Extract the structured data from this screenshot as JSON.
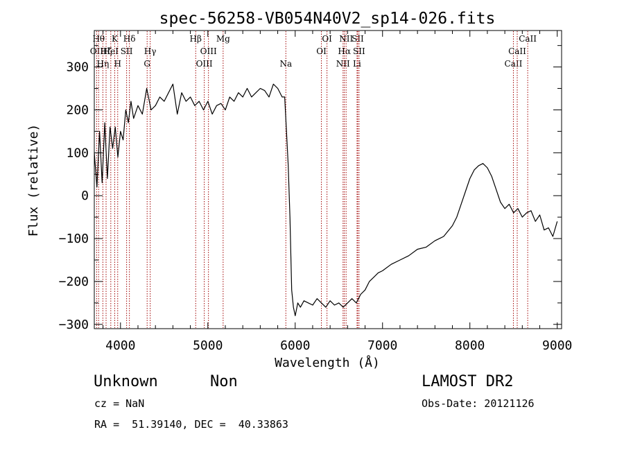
{
  "chart_data": {
    "type": "line",
    "title": "spec-56258-VB054N40V2_sp14-026.fits",
    "xlabel": "Wavelength (Å)",
    "ylabel": "Flux (relative)",
    "xlim": [
      3700,
      9050
    ],
    "ylim": [
      -310,
      385
    ],
    "xticks": [
      {
        "v": 4000,
        "label": "4000"
      },
      {
        "v": 5000,
        "label": "5000"
      },
      {
        "v": 6000,
        "label": "6000"
      },
      {
        "v": 7000,
        "label": "7000"
      },
      {
        "v": 8000,
        "label": "8000"
      },
      {
        "v": 9000,
        "label": "9000"
      }
    ],
    "yticks": [
      {
        "v": -300,
        "label": "−300"
      },
      {
        "v": -200,
        "label": "−200"
      },
      {
        "v": -100,
        "label": "−100"
      },
      {
        "v": 0,
        "label": "0"
      },
      {
        "v": 100,
        "label": "100"
      },
      {
        "v": 200,
        "label": "200"
      },
      {
        "v": 300,
        "label": "300"
      }
    ],
    "grid": false,
    "series": [
      {
        "x": [
          3700,
          3730,
          3760,
          3790,
          3820,
          3850,
          3880,
          3910,
          3940,
          3970,
          4000,
          4030,
          4060,
          4090,
          4120,
          4150,
          4200,
          4250,
          4300,
          4350,
          4400,
          4450,
          4500,
          4550,
          4600,
          4650,
          4700,
          4750,
          4800,
          4850,
          4900,
          4950,
          5000,
          5050,
          5100,
          5150,
          5200,
          5250,
          5300,
          5350,
          5400,
          5450,
          5500,
          5550,
          5600,
          5650,
          5700,
          5750,
          5800,
          5850,
          5880,
          5900,
          5920,
          5940,
          5960,
          5980,
          6000,
          6030,
          6060,
          6100,
          6150,
          6200,
          6250,
          6300,
          6350,
          6400,
          6450,
          6500,
          6550,
          6600,
          6650,
          6700,
          6750,
          6800,
          6850,
          6900,
          6950,
          7000,
          7100,
          7200,
          7300,
          7400,
          7500,
          7600,
          7700,
          7800,
          7850,
          7900,
          7950,
          8000,
          8050,
          8100,
          8150,
          8200,
          8250,
          8300,
          8350,
          8400,
          8450,
          8500,
          8550,
          8600,
          8650,
          8700,
          8750,
          8800,
          8850,
          8900,
          8950,
          9000
        ],
        "y": [
          100,
          20,
          150,
          30,
          170,
          40,
          160,
          110,
          160,
          90,
          150,
          130,
          200,
          170,
          220,
          180,
          210,
          190,
          250,
          200,
          210,
          230,
          220,
          240,
          260,
          190,
          240,
          220,
          230,
          210,
          220,
          200,
          220,
          190,
          210,
          215,
          200,
          230,
          220,
          240,
          230,
          250,
          230,
          240,
          250,
          245,
          230,
          260,
          250,
          230,
          230,
          150,
          70,
          -50,
          -220,
          -260,
          -280,
          -250,
          -260,
          -245,
          -250,
          -255,
          -240,
          -250,
          -260,
          -245,
          -255,
          -250,
          -260,
          -250,
          -240,
          -250,
          -230,
          -220,
          -200,
          -190,
          -180,
          -175,
          -160,
          -150,
          -140,
          -125,
          -120,
          -105,
          -95,
          -70,
          -50,
          -20,
          10,
          40,
          60,
          70,
          75,
          65,
          45,
          15,
          -15,
          -30,
          -20,
          -40,
          -30,
          -50,
          -40,
          -35,
          -60,
          -45,
          -80,
          -75,
          -95,
          -60
        ]
      }
    ],
    "lines": [
      {
        "x": 3727,
        "label": "OII",
        "row": 1
      },
      {
        "x": 3750,
        "label": "Hθ",
        "row": 0
      },
      {
        "x": 3798,
        "label": "Hη",
        "row": 2
      },
      {
        "x": 3835,
        "label": "Hζ",
        "row": 1
      },
      {
        "x": 3889,
        "label": "HeI",
        "row": 1
      },
      {
        "x": 3934,
        "label": "K",
        "row": 0
      },
      {
        "x": 3968,
        "label": "H",
        "row": 2
      },
      {
        "x": 4070,
        "label": "SII",
        "row": 1
      },
      {
        "x": 4102,
        "label": "Hδ",
        "row": 0
      },
      {
        "x": 4305,
        "label": "G",
        "row": 2
      },
      {
        "x": 4340,
        "label": "Hγ",
        "row": 1
      },
      {
        "x": 4861,
        "label": "Hβ",
        "row": 0
      },
      {
        "x": 4959,
        "label": "OIII",
        "row": 2
      },
      {
        "x": 5007,
        "label": "OIII",
        "row": 1
      },
      {
        "x": 5175,
        "label": "Mg",
        "row": 0
      },
      {
        "x": 5893,
        "label": "Na",
        "row": 2
      },
      {
        "x": 6300,
        "label": "OI",
        "row": 1
      },
      {
        "x": 6364,
        "label": "OI",
        "row": 0
      },
      {
        "x": 6548,
        "label": "NII",
        "row": 2
      },
      {
        "x": 6563,
        "label": "Hα",
        "row": 1
      },
      {
        "x": 6583,
        "label": "NII",
        "row": 0
      },
      {
        "x": 6708,
        "label": "Li",
        "row": 2
      },
      {
        "x": 6716,
        "label": "SII",
        "row": 0
      },
      {
        "x": 6731,
        "label": "SII",
        "row": 1
      },
      {
        "x": 8498,
        "label": "CaII",
        "row": 2
      },
      {
        "x": 8542,
        "label": "CaII",
        "row": 1
      },
      {
        "x": 8662,
        "label": "CaII",
        "row": 0
      }
    ]
  },
  "info": {
    "class": "Unknown",
    "subclass": "Non",
    "cz": "cz = NaN",
    "radec": "RA =  51.39140, DEC =  40.33863",
    "survey": "LAMOST DR2",
    "obsdate": "Obs-Date: 20121126"
  }
}
